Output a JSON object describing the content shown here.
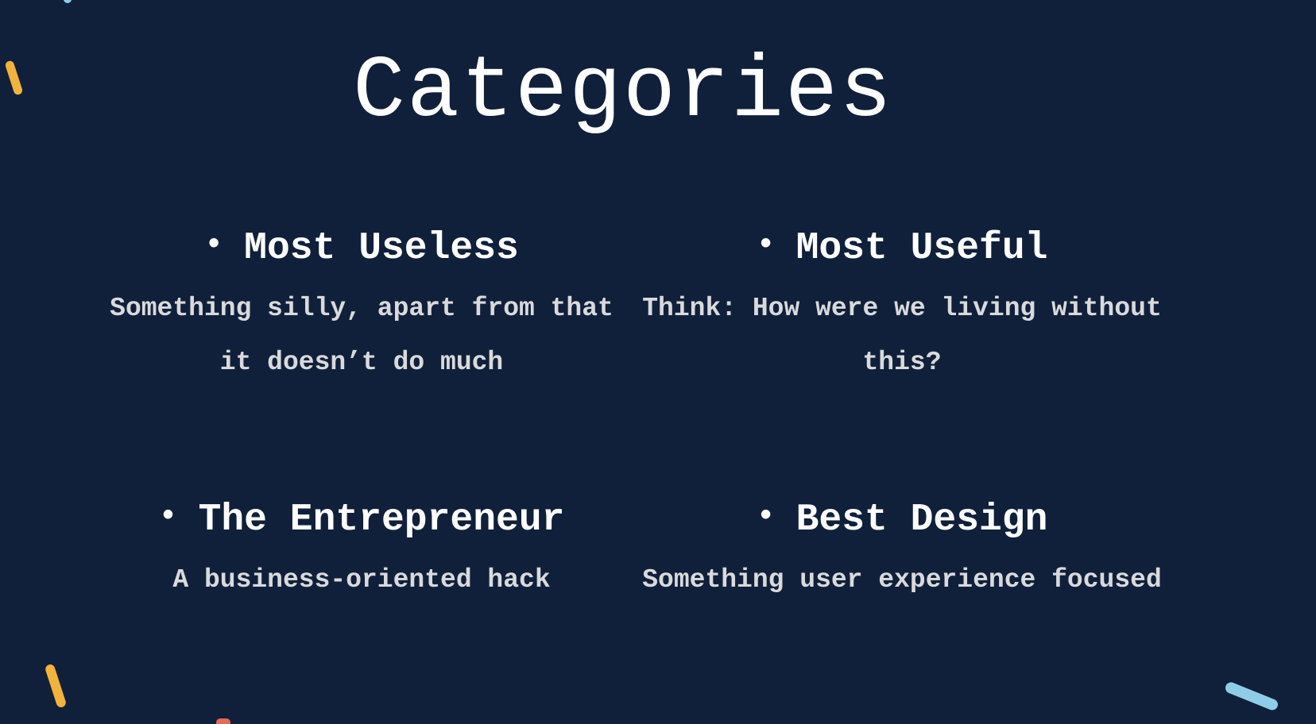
{
  "slide": {
    "title": "Categories",
    "categories": [
      {
        "heading": "Most Useless",
        "description": "Something silly, apart from that it doesn’t do much"
      },
      {
        "heading": "Most Useful",
        "description": "Think: How were we living without this?"
      },
      {
        "heading": "The Entrepreneur",
        "description": "A business-oriented hack"
      },
      {
        "heading": "Best Design",
        "description": "Something user experience focused"
      }
    ],
    "bullet": "•"
  },
  "colors": {
    "background": "#11203a",
    "text": "#ffffff",
    "description_text": "#d9dadd",
    "confetti_yellow": "#f2b33d",
    "confetti_blue": "#8ecde8",
    "confetti_red": "#e56a5a"
  },
  "decorations": [
    {
      "name": "confetti-yellow-top-left",
      "color": "yellow"
    },
    {
      "name": "confetti-yellow-bottom-left",
      "color": "yellow"
    },
    {
      "name": "confetti-blue-bottom-right",
      "color": "blue"
    },
    {
      "name": "confetti-blue-top-left",
      "color": "blue"
    },
    {
      "name": "confetti-red-bottom",
      "color": "red"
    }
  ]
}
